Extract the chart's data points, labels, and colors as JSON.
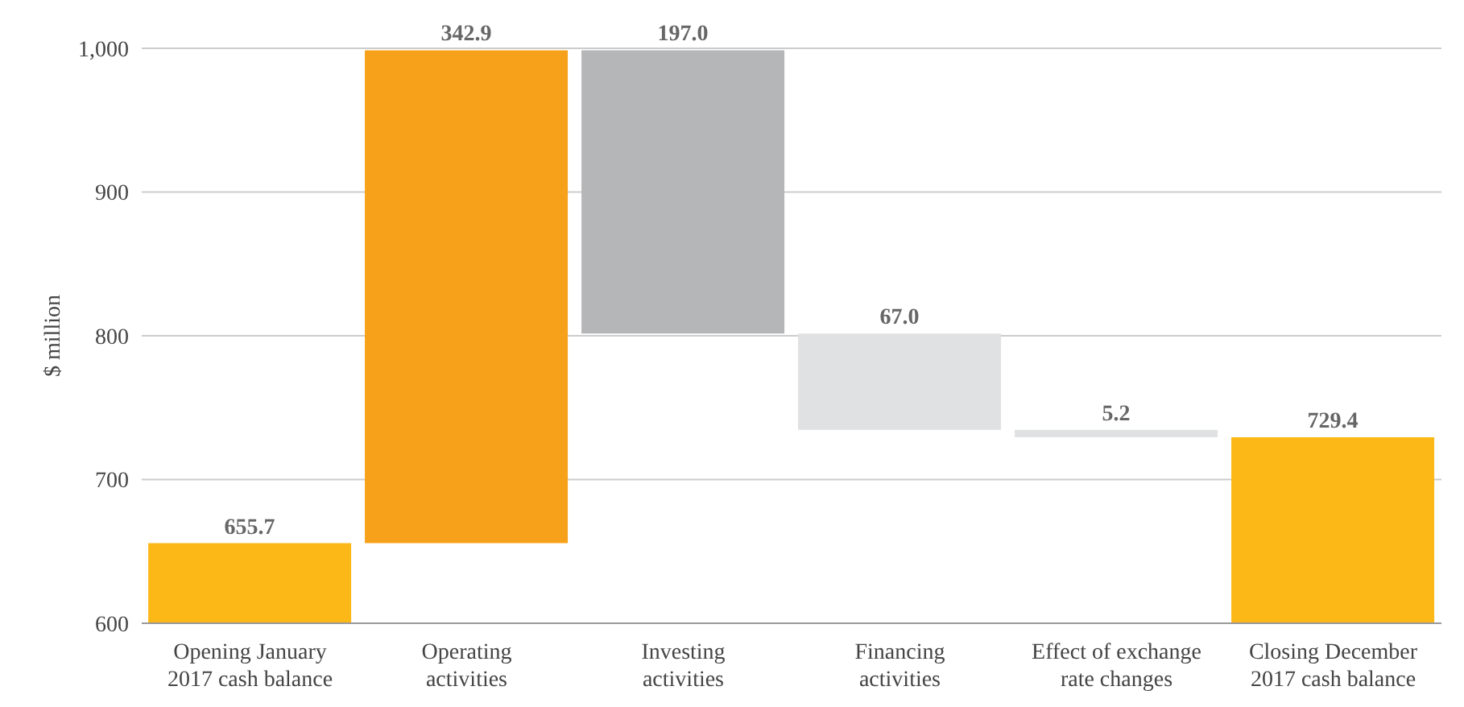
{
  "chart_data": {
    "type": "bar",
    "ylabel": "$ million",
    "categories": [
      "Opening January 2017 cash balance",
      "Operating activities",
      "Investing activities",
      "Financing activities",
      "Effect of exchange rate changes",
      "Closing December 2017 cash balance"
    ],
    "values": [
      655.7,
      342.9,
      -197.0,
      -67.0,
      -5.2,
      729.4
    ],
    "base": [
      0,
      655.7,
      998.6,
      801.6,
      734.6,
      0
    ],
    "value_labels": [
      "655.7",
      "342.9",
      "197.0",
      "67.0",
      "5.2",
      "729.4"
    ],
    "colors": [
      "#fbb817",
      "#f7a11a",
      "#b5b6b8",
      "#e0e1e2",
      "#e0e1e2",
      "#fbb817"
    ],
    "ylim": [
      600,
      1000
    ],
    "yticks": [
      600,
      700,
      800,
      900,
      {
        "value": 1000,
        "label": "1,000"
      }
    ],
    "grid": "y"
  }
}
